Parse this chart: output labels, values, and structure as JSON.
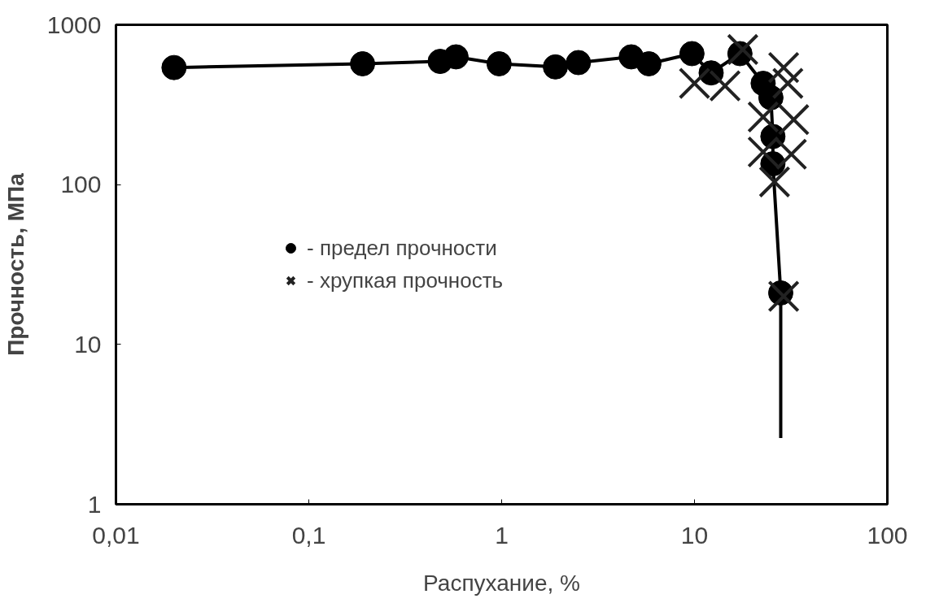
{
  "chart_data": {
    "type": "scatter",
    "xlabel": "Распухание, %",
    "ylabel": "Прочность, МПа",
    "log": "xy",
    "grid": false,
    "legend": "center left",
    "xlim": [
      0.01,
      100
    ],
    "ylim": [
      1,
      1000
    ],
    "xticks": [
      {
        "value": 0.01,
        "label": "0,01"
      },
      {
        "value": 0.1,
        "label": "0,1"
      },
      1,
      10,
      100
    ],
    "yticks": [
      1,
      10,
      100,
      1000
    ],
    "series": [
      {
        "type": "line",
        "marker": "none",
        "color": "#000000",
        "x": [
          0.02,
          0.19,
          0.48,
          0.58,
          0.97,
          1.9,
          2.5,
          4.7,
          5.8,
          9.7,
          12.2,
          17.2,
          22.7,
          24.9,
          25.5,
          25.5,
          28,
          28
        ],
        "values": [
          540,
          570,
          590,
          630,
          570,
          545,
          580,
          630,
          570,
          660,
          500,
          660,
          430,
          350,
          200,
          135,
          21,
          2.6
        ]
      },
      {
        "marker": "circle",
        "name": "- предел прочности",
        "color": "#000000",
        "x": [
          0.02,
          0.19,
          0.48,
          0.58,
          0.97,
          1.9,
          2.5,
          4.7,
          5.8,
          9.7,
          12.2,
          17.2,
          22.7,
          24.9,
          25.5,
          25.5,
          28
        ],
        "values": [
          540,
          570,
          590,
          630,
          570,
          545,
          580,
          630,
          570,
          660,
          500,
          660,
          430,
          350,
          200,
          135,
          21
        ]
      },
      {
        "marker": "cross",
        "name": "- хрупкая прочность",
        "color": "#222222",
        "x": [
          10,
          14.4,
          17.8,
          29,
          30.5,
          22.7,
          32.7,
          22.7,
          31.8,
          26,
          29
        ],
        "values": [
          430,
          415,
          700,
          540,
          430,
          265,
          255,
          160,
          155,
          104,
          20
        ]
      }
    ]
  }
}
